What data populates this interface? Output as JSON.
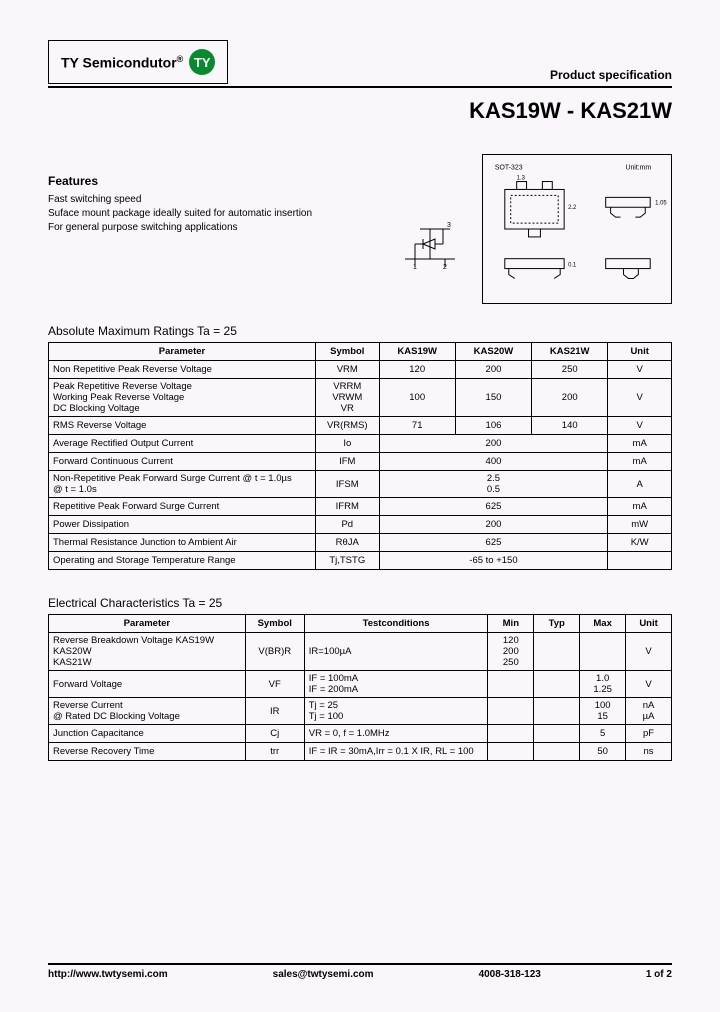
{
  "brand": {
    "name": "TY  Semicondutor",
    "reg": "®",
    "circle": "TY"
  },
  "spec_label": "Product specification",
  "part_title": "KAS19W - KAS21W",
  "features": {
    "heading": "Features",
    "lines": [
      "Fast switching speed",
      "Suface mount package ideally suited for automatic insertion",
      "For general purpose switching applications"
    ]
  },
  "pkg": {
    "label": "SOT-323",
    "unit": "Unit:mm"
  },
  "table1": {
    "title": "Absolute Maximum Ratings Ta = 25",
    "headers": [
      "Parameter",
      "Symbol",
      "KAS19W",
      "KAS20W",
      "KAS21W",
      "Unit"
    ],
    "rows": [
      {
        "p": "Non Repetitive Peak Reverse Voltage",
        "s": "VRM",
        "v": [
          "120",
          "200",
          "250"
        ],
        "u": "V"
      },
      {
        "p": "Peak Repetitive Reverse Voltage\nWorking Peak Reverse Voltage\nDC Blocking Voltage",
        "s": "VRRM\nVRWM\nVR",
        "v": [
          "100",
          "150",
          "200"
        ],
        "u": "V"
      },
      {
        "p": "RMS Reverse Voltage",
        "s": "VR(RMS)",
        "v": [
          "71",
          "106",
          "140"
        ],
        "u": "V"
      },
      {
        "p": "Average Rectified Output Current",
        "s": "Io",
        "span": "200",
        "u": "mA"
      },
      {
        "p": "Forward Continuous Current",
        "s": "IFM",
        "span": "400",
        "u": "mA"
      },
      {
        "p": "Non-Repetitive Peak Forward Surge Current @ t = 1.0µs\n                                                                    @ t = 1.0s",
        "s": "IFSM",
        "span": "2.5\n0.5",
        "u": "A"
      },
      {
        "p": "Repetitive Peak Forward Surge Current",
        "s": "IFRM",
        "span": "625",
        "u": "mA"
      },
      {
        "p": "Power Dissipation",
        "s": "Pd",
        "span": "200",
        "u": "mW"
      },
      {
        "p": "Thermal Resistance Junction to Ambient Air",
        "s": "RθJA",
        "span": "625",
        "u": "K/W"
      },
      {
        "p": "Operating and Storage Temperature Range",
        "s": "Tj,TSTG",
        "span": "-65 to +150",
        "u": ""
      }
    ]
  },
  "table2": {
    "title": "Electrical Characteristics Ta = 25",
    "headers": [
      "Parameter",
      "Symbol",
      "Testconditions",
      "Min",
      "Typ",
      "Max",
      "Unit"
    ],
    "rows": [
      {
        "p": "Reverse Breakdown Voltage    KAS19W\n                                              KAS20W\n                                              KAS21W",
        "s": "V(BR)R",
        "tc": "IR=100µA",
        "min": "120\n200\n250",
        "typ": "",
        "max": "",
        "u": "V"
      },
      {
        "p": "Forward Voltage",
        "s": "VF",
        "tc": "IF = 100mA\nIF = 200mA",
        "min": "",
        "typ": "",
        "max": "1.0\n1.25",
        "u": "V"
      },
      {
        "p": "Reverse Current\n@ Rated DC Blocking Voltage",
        "s": "IR",
        "tc": "Tj = 25\nTj = 100",
        "min": "",
        "typ": "",
        "max": "100\n15",
        "u": "nA\nµA"
      },
      {
        "p": "Junction Capacitance",
        "s": "Cj",
        "tc": "VR = 0, f = 1.0MHz",
        "min": "",
        "typ": "",
        "max": "5",
        "u": "pF"
      },
      {
        "p": "Reverse Recovery Time",
        "s": "trr",
        "tc": "IF = IR = 30mA,Irr = 0.1 X IR, RL = 100",
        "min": "",
        "typ": "",
        "max": "50",
        "u": "ns"
      }
    ]
  },
  "footer": {
    "url": "http://www.twtysemi.com",
    "email": "sales@twtysemi.com",
    "phone": "4008-318-123",
    "page": "1 of 2"
  }
}
